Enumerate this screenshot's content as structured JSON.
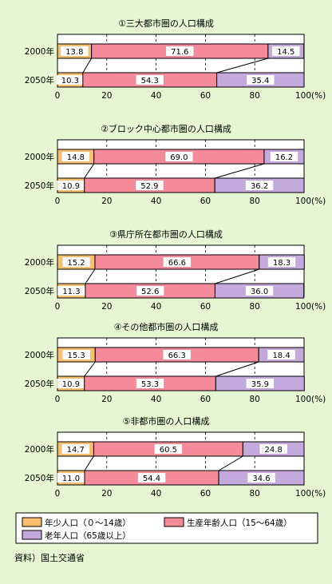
{
  "colors": {
    "background": "#E6F5D2",
    "youth": "#F9BF6E",
    "working": "#F58A9A",
    "elderly": "#C3A9DC"
  },
  "source": "資料）国土交通省",
  "chart_data": [
    {
      "type": "bar",
      "orientation": "horizontal-stacked",
      "title": "①三大都市圏の人口構成",
      "categories": [
        "2000年",
        "2050年"
      ],
      "series": [
        {
          "name": "年少人口（０～14歳）",
          "values": [
            13.8,
            10.3
          ]
        },
        {
          "name": "生産年齢人口（15～64歳）",
          "values": [
            71.6,
            54.3
          ]
        },
        {
          "name": "老年人口（65歳以上）",
          "values": [
            14.5,
            35.4
          ]
        }
      ],
      "xlim": [
        0,
        100
      ],
      "ticks": [
        "0",
        "20",
        "40",
        "60",
        "80",
        "100(%)"
      ]
    },
    {
      "type": "bar",
      "orientation": "horizontal-stacked",
      "title": "②ブロック中心都市圏の人口構成",
      "categories": [
        "2000年",
        "2050年"
      ],
      "series": [
        {
          "name": "年少人口（０～14歳）",
          "values": [
            14.8,
            10.9
          ]
        },
        {
          "name": "生産年齢人口（15～64歳）",
          "values": [
            69.0,
            52.9
          ]
        },
        {
          "name": "老年人口（65歳以上）",
          "values": [
            16.2,
            36.2
          ]
        }
      ],
      "xlim": [
        0,
        100
      ],
      "ticks": [
        "0",
        "20",
        "40",
        "60",
        "80",
        "100(%)"
      ]
    },
    {
      "type": "bar",
      "orientation": "horizontal-stacked",
      "title": "③県庁所在都市圏の人口構成",
      "categories": [
        "2000年",
        "2050年"
      ],
      "series": [
        {
          "name": "年少人口（０～14歳）",
          "values": [
            15.2,
            11.3
          ]
        },
        {
          "name": "生産年齢人口（15～64歳）",
          "values": [
            66.6,
            52.6
          ]
        },
        {
          "name": "老年人口（65歳以上）",
          "values": [
            18.3,
            36.0
          ]
        }
      ],
      "xlim": [
        0,
        100
      ],
      "ticks": [
        "0",
        "20",
        "40",
        "60",
        "80",
        "100(%)"
      ]
    },
    {
      "type": "bar",
      "orientation": "horizontal-stacked",
      "title": "④その他都市圏の人口構成",
      "categories": [
        "2000年",
        "2050年"
      ],
      "series": [
        {
          "name": "年少人口（０～14歳）",
          "values": [
            15.3,
            10.9
          ]
        },
        {
          "name": "生産年齢人口（15～64歳）",
          "values": [
            66.3,
            53.3
          ]
        },
        {
          "name": "老年人口（65歳以上）",
          "values": [
            18.4,
            35.9
          ]
        }
      ],
      "xlim": [
        0,
        100
      ],
      "ticks": [
        "0",
        "20",
        "40",
        "60",
        "80",
        "100(%)"
      ]
    },
    {
      "type": "bar",
      "orientation": "horizontal-stacked",
      "title": "⑤非都市圏の人口構成",
      "categories": [
        "2000年",
        "2050年"
      ],
      "series": [
        {
          "name": "年少人口（０～14歳）",
          "values": [
            14.7,
            11.0
          ]
        },
        {
          "name": "生産年齢人口（15～64歳）",
          "values": [
            60.5,
            54.4
          ]
        },
        {
          "name": "老年人口（65歳以上）",
          "values": [
            24.8,
            34.6
          ]
        }
      ],
      "xlim": [
        0,
        100
      ],
      "ticks": [
        "0",
        "20",
        "40",
        "60",
        "80",
        "100(%)"
      ]
    }
  ],
  "legend": [
    {
      "label": "年少人口（０～14歳）",
      "key": "youth"
    },
    {
      "label": "生産年齢人口（15～64歳）",
      "key": "working"
    },
    {
      "label": "老年人口（65歳以上）",
      "key": "elderly"
    }
  ]
}
